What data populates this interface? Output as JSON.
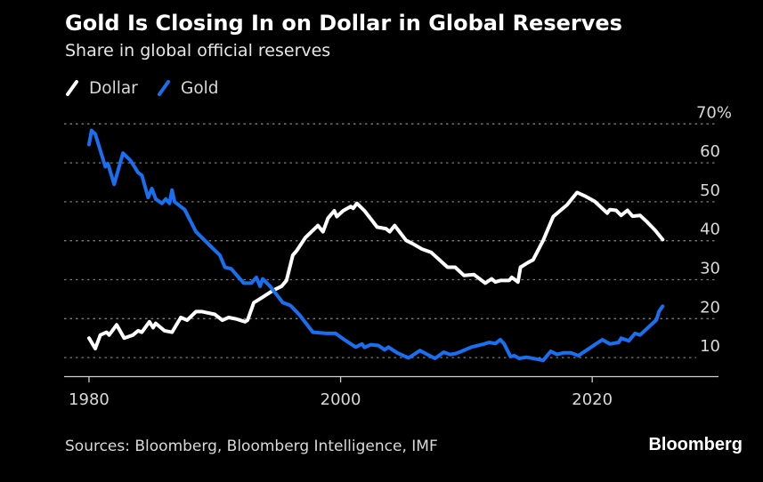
{
  "chart_data": {
    "type": "line",
    "title": "Gold Is Closing In on Dollar in Global Reserves",
    "subtitle": "Share in global official reserves",
    "xlabel": "",
    "ylabel": "",
    "xlim": [
      1978,
      2030
    ],
    "ylim": [
      5,
      70
    ],
    "x_ticks": [
      1980,
      2000,
      2020
    ],
    "x_tick_labels": [
      "1980",
      "2000",
      "2020"
    ],
    "y_ticks": [
      10,
      20,
      30,
      40,
      50,
      60,
      70
    ],
    "y_tick_labels": [
      "10",
      "20",
      "30",
      "40",
      "50",
      "60",
      "70%"
    ],
    "grid": true,
    "legend_placement": "top-left",
    "series": [
      {
        "name": "Dollar",
        "color": "#ffffff",
        "points": [
          [
            1980.0,
            15.0
          ],
          [
            1980.5,
            12.3
          ],
          [
            1980.9,
            15.8
          ],
          [
            1981.4,
            16.5
          ],
          [
            1981.6,
            15.8
          ],
          [
            1982.2,
            18.4
          ],
          [
            1982.8,
            15.0
          ],
          [
            1983.5,
            15.8
          ],
          [
            1983.9,
            16.9
          ],
          [
            1984.2,
            16.5
          ],
          [
            1984.8,
            19.2
          ],
          [
            1985.1,
            17.7
          ],
          [
            1985.3,
            18.8
          ],
          [
            1986.0,
            16.9
          ],
          [
            1986.6,
            16.5
          ],
          [
            1987.3,
            20.3
          ],
          [
            1987.8,
            19.6
          ],
          [
            1988.5,
            21.8
          ],
          [
            1989.0,
            21.8
          ],
          [
            1989.4,
            21.5
          ],
          [
            1990.0,
            21.1
          ],
          [
            1990.6,
            19.6
          ],
          [
            1991.1,
            20.3
          ],
          [
            1991.7,
            19.9
          ],
          [
            1992.4,
            19.2
          ],
          [
            1992.6,
            19.6
          ],
          [
            1993.1,
            24.1
          ],
          [
            1993.7,
            25.3
          ],
          [
            1994.6,
            27.2
          ],
          [
            1995.3,
            28.3
          ],
          [
            1995.7,
            29.8
          ],
          [
            1996.2,
            36.3
          ],
          [
            1996.5,
            37.4
          ],
          [
            1997.2,
            40.8
          ],
          [
            1998.2,
            43.9
          ],
          [
            1998.6,
            42.3
          ],
          [
            1999.0,
            45.8
          ],
          [
            1999.5,
            47.7
          ],
          [
            1999.7,
            46.2
          ],
          [
            2000.2,
            47.7
          ],
          [
            2000.8,
            48.8
          ],
          [
            2001.0,
            48.3
          ],
          [
            2001.3,
            49.6
          ],
          [
            2001.9,
            47.7
          ],
          [
            2002.9,
            43.5
          ],
          [
            2003.6,
            43.1
          ],
          [
            2003.9,
            42.3
          ],
          [
            2004.3,
            43.9
          ],
          [
            2005.2,
            40.1
          ],
          [
            2005.7,
            39.3
          ],
          [
            2006.5,
            37.8
          ],
          [
            2007.2,
            37.0
          ],
          [
            2008.5,
            33.2
          ],
          [
            2009.1,
            33.2
          ],
          [
            2009.8,
            31.1
          ],
          [
            2010.6,
            31.3
          ],
          [
            2011.5,
            29.1
          ],
          [
            2012.0,
            30.2
          ],
          [
            2012.3,
            29.4
          ],
          [
            2012.7,
            29.8
          ],
          [
            2013.4,
            29.8
          ],
          [
            2013.6,
            30.6
          ],
          [
            2014.1,
            29.4
          ],
          [
            2014.3,
            33.2
          ],
          [
            2014.9,
            34.4
          ],
          [
            2015.3,
            35.1
          ],
          [
            2016.1,
            40.1
          ],
          [
            2016.9,
            46.2
          ],
          [
            2018.0,
            49.2
          ],
          [
            2018.8,
            52.4
          ],
          [
            2019.4,
            51.5
          ],
          [
            2020.2,
            50.1
          ],
          [
            2021.2,
            47.1
          ],
          [
            2021.4,
            48.0
          ],
          [
            2021.9,
            47.8
          ],
          [
            2022.3,
            46.5
          ],
          [
            2022.8,
            47.8
          ],
          [
            2023.2,
            46.3
          ],
          [
            2023.8,
            46.5
          ],
          [
            2024.3,
            45.0
          ],
          [
            2025.0,
            42.7
          ],
          [
            2025.6,
            40.3
          ]
        ]
      },
      {
        "name": "Gold",
        "color": "#1a6ff0",
        "points": [
          [
            1980.0,
            64.7
          ],
          [
            1980.2,
            68.3
          ],
          [
            1980.5,
            67.4
          ],
          [
            1981.3,
            59.0
          ],
          [
            1981.5,
            59.8
          ],
          [
            1982.0,
            54.5
          ],
          [
            1982.7,
            62.5
          ],
          [
            1983.3,
            60.6
          ],
          [
            1983.9,
            57.5
          ],
          [
            1984.2,
            56.8
          ],
          [
            1984.7,
            51.1
          ],
          [
            1985.0,
            53.4
          ],
          [
            1985.3,
            50.7
          ],
          [
            1985.8,
            49.6
          ],
          [
            1986.1,
            50.7
          ],
          [
            1986.4,
            49.6
          ],
          [
            1986.6,
            53.0
          ],
          [
            1986.8,
            50.0
          ],
          [
            1987.6,
            48.0
          ],
          [
            1988.5,
            42.3
          ],
          [
            1989.7,
            38.5
          ],
          [
            1990.4,
            36.3
          ],
          [
            1990.8,
            33.2
          ],
          [
            1991.3,
            32.8
          ],
          [
            1992.3,
            29.1
          ],
          [
            1992.9,
            29.1
          ],
          [
            1993.3,
            30.6
          ],
          [
            1993.6,
            28.3
          ],
          [
            1993.8,
            30.2
          ],
          [
            1994.4,
            28.3
          ],
          [
            1995.4,
            24.1
          ],
          [
            1996.0,
            23.4
          ],
          [
            1996.7,
            21.1
          ],
          [
            1997.8,
            16.5
          ],
          [
            1998.9,
            16.2
          ],
          [
            1999.6,
            16.2
          ],
          [
            2000.3,
            14.6
          ],
          [
            2001.2,
            12.7
          ],
          [
            2001.7,
            13.5
          ],
          [
            2001.9,
            12.6
          ],
          [
            2002.4,
            13.3
          ],
          [
            2003.0,
            13.1
          ],
          [
            2003.5,
            12.0
          ],
          [
            2003.8,
            12.7
          ],
          [
            2004.5,
            11.2
          ],
          [
            2005.4,
            9.9
          ],
          [
            2006.3,
            11.8
          ],
          [
            2006.9,
            10.8
          ],
          [
            2007.5,
            9.8
          ],
          [
            2008.2,
            11.4
          ],
          [
            2008.7,
            10.8
          ],
          [
            2009.1,
            11.0
          ],
          [
            2009.6,
            11.6
          ],
          [
            2010.4,
            12.7
          ],
          [
            2011.4,
            13.5
          ],
          [
            2011.8,
            13.9
          ],
          [
            2012.3,
            13.6
          ],
          [
            2012.7,
            14.6
          ],
          [
            2013.0,
            13.5
          ],
          [
            2013.5,
            10.3
          ],
          [
            2013.8,
            10.5
          ],
          [
            2014.2,
            9.8
          ],
          [
            2014.8,
            10.1
          ],
          [
            2016.1,
            9.3
          ],
          [
            2016.7,
            11.6
          ],
          [
            2017.2,
            10.8
          ],
          [
            2017.7,
            11.2
          ],
          [
            2018.3,
            11.2
          ],
          [
            2018.9,
            10.5
          ],
          [
            2019.6,
            12.0
          ],
          [
            2020.8,
            14.6
          ],
          [
            2021.4,
            13.5
          ],
          [
            2022.1,
            13.9
          ],
          [
            2022.3,
            15.0
          ],
          [
            2022.9,
            14.3
          ],
          [
            2023.4,
            16.2
          ],
          [
            2023.8,
            15.8
          ],
          [
            2024.3,
            17.3
          ],
          [
            2025.1,
            19.7
          ],
          [
            2025.3,
            21.8
          ],
          [
            2025.6,
            23.2
          ]
        ]
      }
    ],
    "source": "Sources: Bloomberg, Bloomberg Intelligence, IMF",
    "brand": "Bloomberg"
  }
}
